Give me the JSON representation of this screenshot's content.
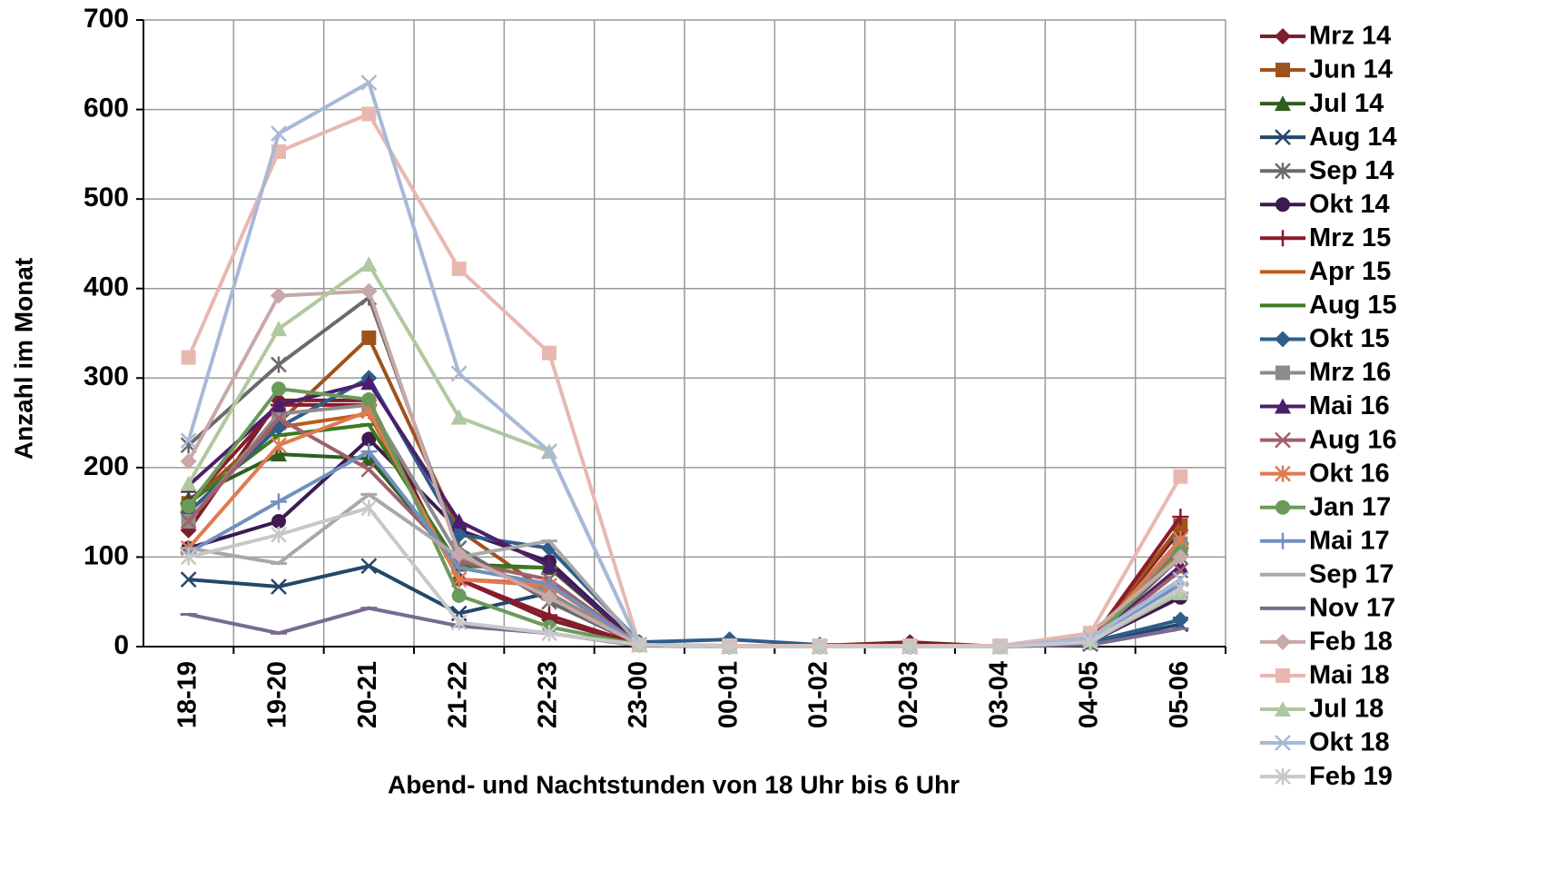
{
  "chart_data": {
    "type": "line",
    "x_label": "Abend- und Nachtstunden von 18 Uhr bis 6 Uhr",
    "y_label": "Anzahl im Monat",
    "categories": [
      "18-19",
      "19-20",
      "20-21",
      "21-22",
      "22-23",
      "23-00",
      "00-01",
      "01-02",
      "02-03",
      "03-04",
      "04-05",
      "05-06"
    ],
    "ylim": [
      0,
      700
    ],
    "yticks": [
      0,
      100,
      200,
      300,
      400,
      500,
      600,
      700
    ],
    "grid": true,
    "legend": "right",
    "series": [
      {
        "name": "Mrz 14",
        "color": "#7a1f2e",
        "marker": "diamond",
        "values": [
          130,
          275,
          275,
          75,
          30,
          2,
          1,
          1,
          5,
          0,
          5,
          130
        ]
      },
      {
        "name": "Jun 14",
        "color": "#a0521c",
        "marker": "square",
        "values": [
          160,
          250,
          345,
          130,
          60,
          2,
          0,
          0,
          0,
          0,
          5,
          135
        ]
      },
      {
        "name": "Jul 14",
        "color": "#2e5e1e",
        "marker": "triangle",
        "values": [
          165,
          215,
          210,
          92,
          88,
          2,
          0,
          0,
          0,
          0,
          5,
          110
        ]
      },
      {
        "name": "Aug 14",
        "color": "#24476b",
        "marker": "x",
        "values": [
          75,
          67,
          90,
          37,
          60,
          2,
          0,
          0,
          0,
          0,
          3,
          25
        ]
      },
      {
        "name": "Sep 14",
        "color": "#6b6b6b",
        "marker": "star",
        "values": [
          225,
          315,
          390,
          110,
          50,
          2,
          0,
          0,
          0,
          0,
          5,
          100
        ]
      },
      {
        "name": "Okt 14",
        "color": "#3d1a4f",
        "marker": "circle",
        "values": [
          110,
          140,
          232,
          130,
          95,
          2,
          0,
          0,
          0,
          0,
          5,
          55
        ]
      },
      {
        "name": "Mrz 15",
        "color": "#8b1a2a",
        "marker": "plus",
        "values": [
          160,
          270,
          270,
          75,
          35,
          2,
          0,
          0,
          0,
          0,
          5,
          145
        ]
      },
      {
        "name": "Apr 15",
        "color": "#c05a1a",
        "marker": "dash",
        "values": [
          150,
          245,
          260,
          75,
          70,
          2,
          0,
          0,
          0,
          0,
          5,
          110
        ]
      },
      {
        "name": "Aug 15",
        "color": "#3e7a1e",
        "marker": "dash",
        "values": [
          160,
          236,
          248,
          90,
          88,
          2,
          0,
          0,
          0,
          0,
          5,
          115
        ]
      },
      {
        "name": "Okt 15",
        "color": "#2f5d8c",
        "marker": "diamond",
        "values": [
          150,
          245,
          300,
          125,
          110,
          5,
          8,
          2,
          1,
          0,
          5,
          30
        ]
      },
      {
        "name": "Mrz 16",
        "color": "#8c8c8c",
        "marker": "square",
        "values": [
          140,
          260,
          270,
          100,
          60,
          2,
          0,
          0,
          0,
          0,
          5,
          115
        ]
      },
      {
        "name": "Mai 16",
        "color": "#4b1e6b",
        "marker": "triangle",
        "values": [
          180,
          270,
          295,
          140,
          90,
          2,
          0,
          0,
          0,
          0,
          5,
          90
        ]
      },
      {
        "name": "Aug 16",
        "color": "#a0606a",
        "marker": "x",
        "values": [
          140,
          255,
          198,
          95,
          75,
          2,
          0,
          0,
          0,
          0,
          5,
          85
        ]
      },
      {
        "name": "Okt 16",
        "color": "#e07a50",
        "marker": "star",
        "values": [
          110,
          225,
          263,
          75,
          68,
          2,
          0,
          0,
          0,
          0,
          5,
          120
        ]
      },
      {
        "name": "Jan 17",
        "color": "#6a9a5a",
        "marker": "circle",
        "values": [
          157,
          288,
          276,
          57,
          22,
          2,
          0,
          0,
          0,
          0,
          5,
          105
        ]
      },
      {
        "name": "Mai 17",
        "color": "#7090c0",
        "marker": "plus",
        "values": [
          105,
          162,
          218,
          88,
          70,
          2,
          0,
          0,
          0,
          0,
          5,
          70
        ]
      },
      {
        "name": "Sep 17",
        "color": "#a8a8a8",
        "marker": "dash",
        "values": [
          110,
          93,
          170,
          100,
          118,
          2,
          0,
          0,
          0,
          0,
          5,
          60
        ]
      },
      {
        "name": "Nov 17",
        "color": "#7a6a90",
        "marker": "dash",
        "values": [
          36,
          15,
          43,
          23,
          15,
          1,
          0,
          0,
          0,
          0,
          2,
          20
        ]
      },
      {
        "name": "Feb 18",
        "color": "#c8a8a8",
        "marker": "diamond",
        "values": [
          207,
          392,
          397,
          103,
          55,
          2,
          0,
          0,
          0,
          0,
          15,
          100
        ]
      },
      {
        "name": "Mai 18",
        "color": "#e8b8b0",
        "marker": "square",
        "values": [
          323,
          553,
          595,
          422,
          328,
          2,
          1,
          1,
          1,
          1,
          15,
          190
        ]
      },
      {
        "name": "Jul 18",
        "color": "#b0c8a0",
        "marker": "triangle",
        "values": [
          182,
          355,
          427,
          256,
          218,
          2,
          0,
          0,
          0,
          0,
          8,
          60
        ]
      },
      {
        "name": "Okt 18",
        "color": "#a8b8d8",
        "marker": "x",
        "values": [
          230,
          573,
          630,
          305,
          218,
          2,
          0,
          0,
          0,
          0,
          10,
          75
        ]
      },
      {
        "name": "Feb 19",
        "color": "#c8c8c8",
        "marker": "star",
        "values": [
          100,
          125,
          155,
          27,
          15,
          2,
          0,
          0,
          0,
          0,
          5,
          65
        ]
      }
    ]
  }
}
